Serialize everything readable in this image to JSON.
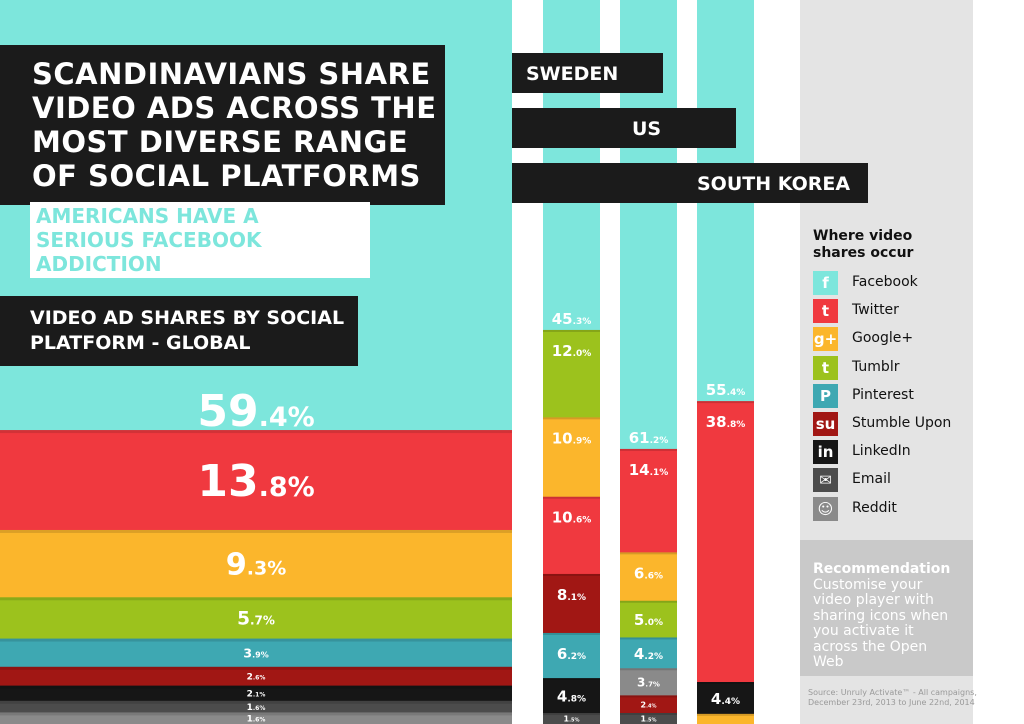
{
  "headline": {
    "title": "SCANDINAVIANS SHARE VIDEO ADS ACROSS THE MOST DIVERSE RANGE OF SOCIAL PLATFORMS",
    "subtitle": "AMERICANS HAVE A SERIOUS FACEBOOK ADDICTION",
    "global_title": "VIDEO AD SHARES BY SOCIAL PLATFORM - GLOBAL"
  },
  "legend": {
    "title": "Where video shares occur",
    "items": [
      {
        "name": "Facebook",
        "icon": "facebook-icon",
        "glyph": "f",
        "color": "#7de6dc"
      },
      {
        "name": "Twitter",
        "icon": "twitter-icon",
        "glyph": "t",
        "color": "#f0393f"
      },
      {
        "name": "Google+",
        "icon": "google-plus-icon",
        "glyph": "g+",
        "color": "#fbb62c"
      },
      {
        "name": "Tumblr",
        "icon": "tumblr-icon",
        "glyph": "t",
        "color": "#9cc21d"
      },
      {
        "name": "Pinterest",
        "icon": "pinterest-icon",
        "glyph": "P",
        "color": "#3ea8b2"
      },
      {
        "name": "Stumble Upon",
        "icon": "stumbleupon-icon",
        "glyph": "su",
        "color": "#a11714"
      },
      {
        "name": "LinkedIn",
        "icon": "linkedin-icon",
        "glyph": "in",
        "color": "#161616"
      },
      {
        "name": "Email",
        "icon": "email-icon",
        "glyph": "✉",
        "color": "#4c4c4c"
      },
      {
        "name": "Reddit",
        "icon": "reddit-icon",
        "glyph": "☺",
        "color": "#8a8a8a"
      }
    ]
  },
  "recommendation": {
    "heading": "Recommendation",
    "text": "Customise your video player with sharing icons when you activate it across the Open Web"
  },
  "source": "Source: Unruly Activate™ - All campaigns, December 23rd, 2013 to June 22nd, 2014",
  "chart_data": [
    {
      "type": "bar",
      "orientation": "stacked-horizontal",
      "title": "VIDEO AD SHARES BY SOCIAL PLATFORM - GLOBAL",
      "categories": [
        "Facebook",
        "Twitter",
        "Google+",
        "Tumblr",
        "Pinterest",
        "Stumble Upon",
        "LinkedIn",
        "Email",
        "Reddit"
      ],
      "values": [
        59.4,
        13.8,
        9.3,
        5.7,
        3.9,
        2.6,
        2.1,
        1.6,
        1.6
      ],
      "labels": [
        "59.4%",
        "13.8%",
        "9.3%",
        "5.7%",
        "3.9%",
        "2.6%",
        "2.1%",
        "1.6%",
        "1.6%"
      ],
      "unit": "%"
    },
    {
      "type": "bar",
      "orientation": "stacked-vertical",
      "title": "SWEDEN",
      "categories": [
        "Facebook",
        "Tumblr",
        "Google+",
        "Twitter",
        "Stumble Upon",
        "Pinterest",
        "LinkedIn",
        "Email"
      ],
      "values": [
        45.3,
        12.0,
        10.9,
        10.6,
        8.1,
        6.2,
        4.8,
        1.5
      ],
      "labels": [
        "45.3%",
        "12.0%",
        "10.9%",
        "10.6%",
        "8.1%",
        "6.2%",
        "4.8%",
        "1.5%"
      ],
      "unit": "%"
    },
    {
      "type": "bar",
      "orientation": "stacked-vertical",
      "title": "US",
      "categories": [
        "Facebook",
        "Twitter",
        "Google+",
        "Tumblr",
        "Pinterest",
        "Reddit",
        "Stumble Upon",
        "Email"
      ],
      "values": [
        61.2,
        14.1,
        6.6,
        5.0,
        4.2,
        3.7,
        2.4,
        1.5
      ],
      "labels": [
        "61.2%",
        "14.1%",
        "6.6%",
        "5.0%",
        "4.2%",
        "3.7%",
        "2.4%",
        "1.5%"
      ],
      "unit": "%"
    },
    {
      "type": "bar",
      "orientation": "stacked-vertical",
      "title": "SOUTH KOREA",
      "categories": [
        "Facebook",
        "Twitter",
        "LinkedIn",
        "Google+"
      ],
      "values": [
        55.4,
        38.8,
        4.4,
        1.4
      ],
      "labels": [
        "55.4%",
        "38.8%",
        "4.4%",
        ""
      ],
      "unit": "%"
    }
  ]
}
